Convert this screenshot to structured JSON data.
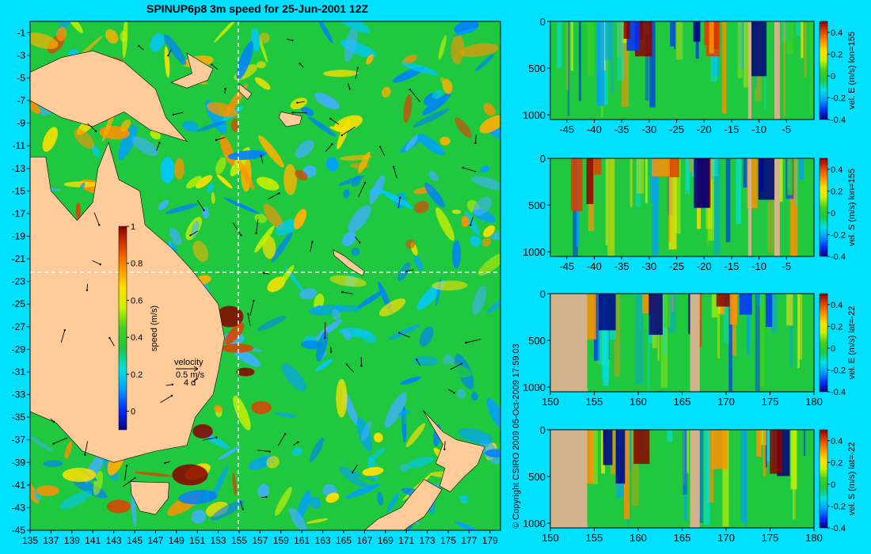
{
  "title": "SPINUP6p8 3m speed for 25-Jun-2001 12Z",
  "copyright": "© Copyright CSIRO 2009   05-Oct-2009 17:59:03",
  "colors": {
    "background": "#00e0ff",
    "land": "#ffcc99",
    "section_land": "#d2b48c",
    "colormap": [
      "#000080",
      "#0030ff",
      "#00a0ff",
      "#00e0e0",
      "#20c840",
      "#40d020",
      "#c8f000",
      "#ffe000",
      "#ff9000",
      "#e04000",
      "#8b0000"
    ]
  },
  "chart_data": [
    {
      "type": "heatmap",
      "title": "SPINUP6p8 3m speed for 25-Jun-2001 12Z",
      "x_ticks": [
        "135",
        "137",
        "139",
        "141",
        "143",
        "145",
        "147",
        "149",
        "151",
        "153",
        "155",
        "157",
        "159",
        "161",
        "163",
        "165",
        "167",
        "169",
        "171",
        "173",
        "175",
        "177",
        "179"
      ],
      "y_ticks": [
        "-1",
        "-3",
        "-5",
        "-7",
        "-9",
        "-11",
        "-13",
        "-15",
        "-17",
        "-19",
        "-21",
        "-23",
        "-25",
        "-27",
        "-29",
        "-31",
        "-33",
        "-35",
        "-37",
        "-39",
        "-41",
        "-43",
        "-45"
      ],
      "xlim": [
        135,
        180
      ],
      "ylim": [
        -45,
        0
      ],
      "section_lines": {
        "lon": 155,
        "lat": -22
      },
      "colorbar": {
        "label": "speed (m/s)",
        "range": [
          -0.1,
          1.0
        ],
        "ticks": [
          "1",
          "0.8",
          "0.6",
          "0.4",
          "0.2",
          "0"
        ]
      },
      "velocity_key": {
        "label": "velocity",
        "scale": "0.5 m/s",
        "days": "4 d"
      }
    },
    {
      "type": "heatmap",
      "xlim": [
        -48,
        0
      ],
      "ylim": [
        1050,
        0
      ],
      "x_ticks": [
        "-45",
        "-40",
        "-35",
        "-30",
        "-25",
        "-20",
        "-15",
        "-10",
        "-5"
      ],
      "y_ticks": [
        "0",
        "500",
        "1000"
      ],
      "colorbar": {
        "label": "vel. E (m/s) lon=155",
        "range": [
          -0.4,
          0.5
        ],
        "ticks": [
          "0.4",
          "0.2",
          "0",
          "-0.2",
          "-0.4"
        ]
      }
    },
    {
      "type": "heatmap",
      "xlim": [
        -48,
        0
      ],
      "ylim": [
        1050,
        0
      ],
      "x_ticks": [
        "-45",
        "-40",
        "-35",
        "-30",
        "-25",
        "-20",
        "-15",
        "-10",
        "-5"
      ],
      "y_ticks": [
        "0",
        "500",
        "1000"
      ],
      "colorbar": {
        "label": "vel. S (m/s) lon=155",
        "range": [
          -0.4,
          0.5
        ],
        "ticks": [
          "0.4",
          "0.2",
          "0",
          "-0.2",
          "-0.4"
        ]
      }
    },
    {
      "type": "heatmap",
      "xlim": [
        150,
        180
      ],
      "ylim": [
        1050,
        0
      ],
      "x_ticks": [
        "150",
        "155",
        "160",
        "165",
        "170",
        "175",
        "180"
      ],
      "y_ticks": [
        "0",
        "500",
        "1000"
      ],
      "colorbar": {
        "label": "vel. E (m/s) lat=-22",
        "range": [
          -0.4,
          0.5
        ],
        "ticks": [
          "0.4",
          "0.2",
          "0",
          "-0.2",
          "-0.4"
        ]
      }
    },
    {
      "type": "heatmap",
      "xlim": [
        150,
        180
      ],
      "ylim": [
        1050,
        0
      ],
      "x_ticks": [
        "150",
        "155",
        "160",
        "165",
        "170",
        "175",
        "180"
      ],
      "y_ticks": [
        "0",
        "500",
        "1000"
      ],
      "colorbar": {
        "label": "vel. S (m/s) lat=-22",
        "range": [
          -0.4,
          0.5
        ],
        "ticks": [
          "0.4",
          "0.2",
          "0",
          "-0.2",
          "-0.4"
        ]
      }
    }
  ]
}
